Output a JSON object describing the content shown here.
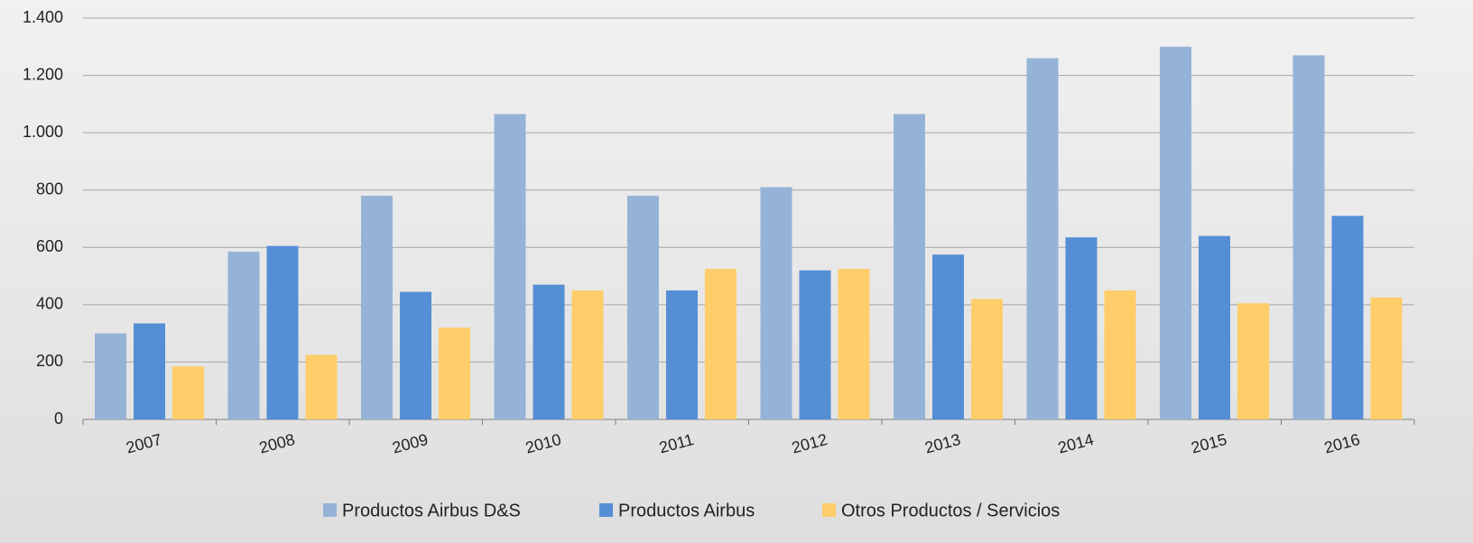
{
  "chart_data": {
    "type": "bar",
    "categories": [
      "2007",
      "2008",
      "2009",
      "2010",
      "2011",
      "2012",
      "2013",
      "2014",
      "2015",
      "2016"
    ],
    "series": [
      {
        "name": "Productos Airbus D&S",
        "color": "#95b3d7",
        "values": [
          300,
          585,
          780,
          1065,
          780,
          810,
          1065,
          1260,
          1300,
          1270
        ]
      },
      {
        "name": "Productos Airbus",
        "color": "#558ed5",
        "values": [
          335,
          605,
          445,
          470,
          450,
          520,
          575,
          635,
          640,
          710
        ]
      },
      {
        "name": "Otros Productos / Servicios",
        "color": "#ffcd69",
        "values": [
          185,
          225,
          320,
          450,
          525,
          525,
          420,
          450,
          405,
          425
        ]
      }
    ],
    "ylim": [
      0,
      1400
    ],
    "yticks": [
      0,
      200,
      400,
      600,
      800,
      {
        "value": 1000,
        "label": "1.000"
      },
      {
        "value": 1200,
        "label": "1.200"
      },
      {
        "value": 1400,
        "label": "1.400"
      }
    ],
    "grid": true,
    "legend": "bottom"
  }
}
